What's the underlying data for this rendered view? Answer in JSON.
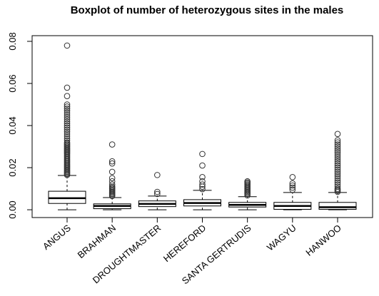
{
  "chart_data": {
    "type": "boxplot",
    "title": "Boxplot of number of heterozygous sites in the males",
    "categories": [
      "ANGUS",
      "BRAHMAN",
      "DROUGHTMASTER",
      "HEREFORD",
      "SANTA GERTRUDIS",
      "WAGYU",
      "HANWOO"
    ],
    "boxes": [
      {
        "whislo": 0,
        "q1": 0.003,
        "med": 0.0055,
        "q3": 0.0088,
        "whishi": 0.0163,
        "outliers": [
          0.0165,
          0.017,
          0.0175,
          0.018,
          0.0185,
          0.019,
          0.0195,
          0.02,
          0.0205,
          0.021,
          0.0215,
          0.022,
          0.0225,
          0.023,
          0.0235,
          0.024,
          0.0245,
          0.025,
          0.0255,
          0.026,
          0.0265,
          0.027,
          0.0275,
          0.028,
          0.0285,
          0.029,
          0.0295,
          0.03,
          0.0305,
          0.031,
          0.0315,
          0.032,
          0.033,
          0.034,
          0.035,
          0.036,
          0.037,
          0.038,
          0.039,
          0.04,
          0.041,
          0.042,
          0.043,
          0.044,
          0.045,
          0.046,
          0.047,
          0.048,
          0.049,
          0.05,
          0.054,
          0.058,
          0.078
        ]
      },
      {
        "whislo": 0,
        "q1": 0.0005,
        "med": 0.0018,
        "q3": 0.0028,
        "whishi": 0.0058,
        "outliers": [
          0.0065,
          0.007,
          0.0075,
          0.008,
          0.0085,
          0.009,
          0.0095,
          0.01,
          0.0105,
          0.011,
          0.012,
          0.0135,
          0.015,
          0.018,
          0.022,
          0.023,
          0.031
        ]
      },
      {
        "whislo": 0,
        "q1": 0.0015,
        "med": 0.0028,
        "q3": 0.0042,
        "whishi": 0.0065,
        "outliers": [
          0.0075,
          0.0085,
          0.0165
        ]
      },
      {
        "whislo": 0,
        "q1": 0.0018,
        "med": 0.0032,
        "q3": 0.0048,
        "whishi": 0.0092,
        "outliers": [
          0.0098,
          0.011,
          0.012,
          0.0135,
          0.0155,
          0.021,
          0.0265
        ]
      },
      {
        "whislo": 0,
        "q1": 0.0013,
        "med": 0.0023,
        "q3": 0.0035,
        "whishi": 0.0062,
        "outliers": [
          0.0068,
          0.0075,
          0.008,
          0.0085,
          0.009,
          0.0095,
          0.01,
          0.0105,
          0.011,
          0.0115,
          0.012,
          0.0125,
          0.013,
          0.0135
        ]
      },
      {
        "whislo": 0,
        "q1": 0.0002,
        "med": 0.0018,
        "q3": 0.0035,
        "whishi": 0.0082,
        "outliers": [
          0.0095,
          0.0105,
          0.0115,
          0.0125,
          0.0155
        ]
      },
      {
        "whislo": 0,
        "q1": 0.0002,
        "med": 0.0012,
        "q3": 0.0035,
        "whishi": 0.0082,
        "outliers": [
          0.0085,
          0.009,
          0.0095,
          0.01,
          0.011,
          0.012,
          0.013,
          0.014,
          0.015,
          0.016,
          0.017,
          0.018,
          0.019,
          0.02,
          0.021,
          0.022,
          0.023,
          0.024,
          0.025,
          0.026,
          0.027,
          0.028,
          0.029,
          0.03,
          0.031,
          0.032,
          0.033,
          0.036
        ]
      }
    ],
    "ylim": [
      -0.0037,
      0.0827
    ],
    "yticks": [
      {
        "value": 0,
        "label": "0.00"
      },
      {
        "value": 0.02,
        "label": "0.02"
      },
      {
        "value": 0.04,
        "label": "0.04"
      },
      {
        "value": 0.06,
        "label": "0.06"
      },
      {
        "value": 0.08,
        "label": "0.08"
      }
    ]
  }
}
